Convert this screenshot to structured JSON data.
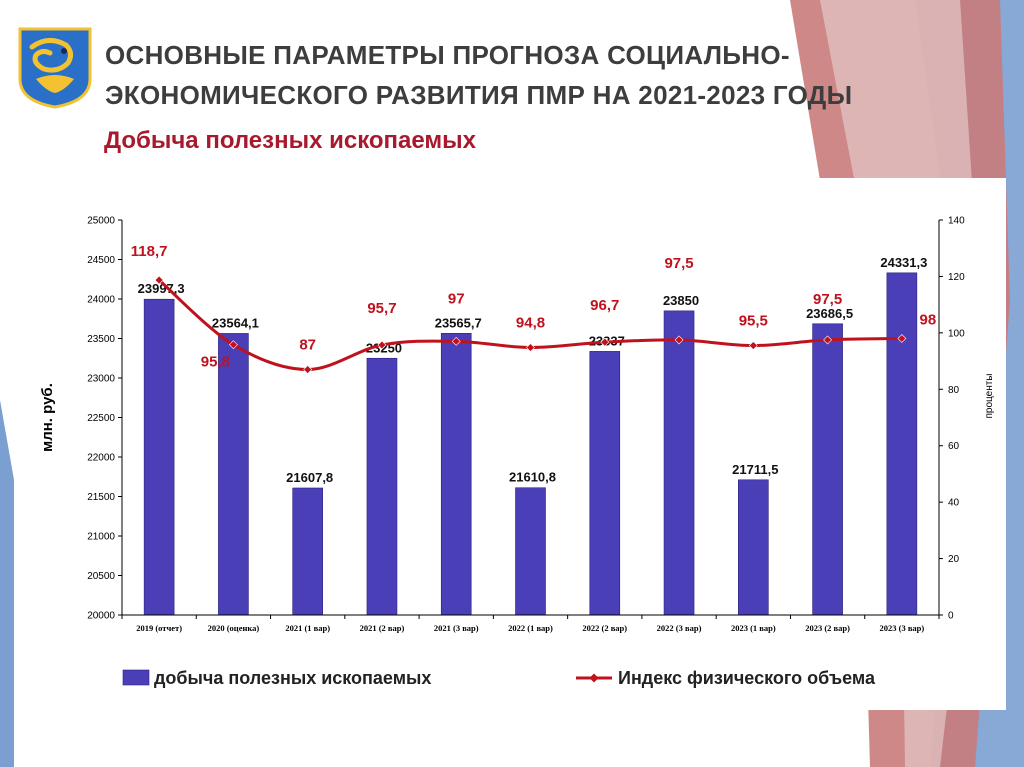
{
  "header": {
    "title_line1": "ОСНОВНЫЕ ПАРАМЕТРЫ ПРОГНОЗА СОЦИАЛЬНО-",
    "title_line2": "ЭКОНОМИЧЕСКОГО РАЗВИТИЯ ПМР НА 2021-2023 ГОДЫ",
    "subtitle": "Добыча полезных ископаемых"
  },
  "colors": {
    "bar": "#4b3fb8",
    "line": "#c0121d",
    "title": "#3d3d3d",
    "subtitle": "#a8192e",
    "deco_salmon": "#c97b7b",
    "deco_blue": "#7b9fd0"
  },
  "icons": {
    "emblem": "city-coat-of-arms-icon"
  },
  "chart_data": {
    "type": "bar",
    "categories": [
      "2019 (отчет)",
      "2020 (оценка)",
      "2021 (1 вар)",
      "2021 (2 вар)",
      "2021 (3 вар)",
      "2022 (1 вар)",
      "2022 (2 вар)",
      "2022 (3 вар)",
      "2023 (1 вар)",
      "2023 (2 вар)",
      "2023 (3 вар)"
    ],
    "series": [
      {
        "name": "добыча полезных ископаемых",
        "type": "bar",
        "axis": "left",
        "values": [
          23997.3,
          23564.1,
          21607.8,
          23250,
          23565.7,
          21610.8,
          23337,
          23850,
          21711.5,
          23686.5,
          24331.3
        ],
        "labels": [
          "23997,3",
          "23564,1",
          "21607,8",
          "23250",
          "23565,7",
          "21610,8",
          "23337",
          "23850",
          "21711,5",
          "23686,5",
          "24331,3"
        ]
      },
      {
        "name": "Индекс физического объема",
        "type": "line",
        "axis": "right",
        "values": [
          118.7,
          95.8,
          87,
          95.7,
          97,
          94.8,
          96.7,
          97.5,
          95.5,
          97.5,
          98
        ],
        "labels": [
          "118,7",
          "95,8",
          "87",
          "95,7",
          "97",
          "94,8",
          "96,7",
          "97,5",
          "95,5",
          "97,5",
          "98"
        ]
      }
    ],
    "ylabel": "млн. руб.",
    "ylabel_right": "проценты",
    "ylim": [
      20000,
      25000
    ],
    "ylim_right": [
      0,
      140
    ],
    "yticks": [
      20000,
      20500,
      21000,
      21500,
      22000,
      22500,
      23000,
      23500,
      24000,
      24500,
      25000
    ],
    "yticks_right": [
      0,
      20,
      40,
      60,
      80,
      100,
      120,
      140
    ],
    "grid": false,
    "legend_position": "bottom"
  }
}
